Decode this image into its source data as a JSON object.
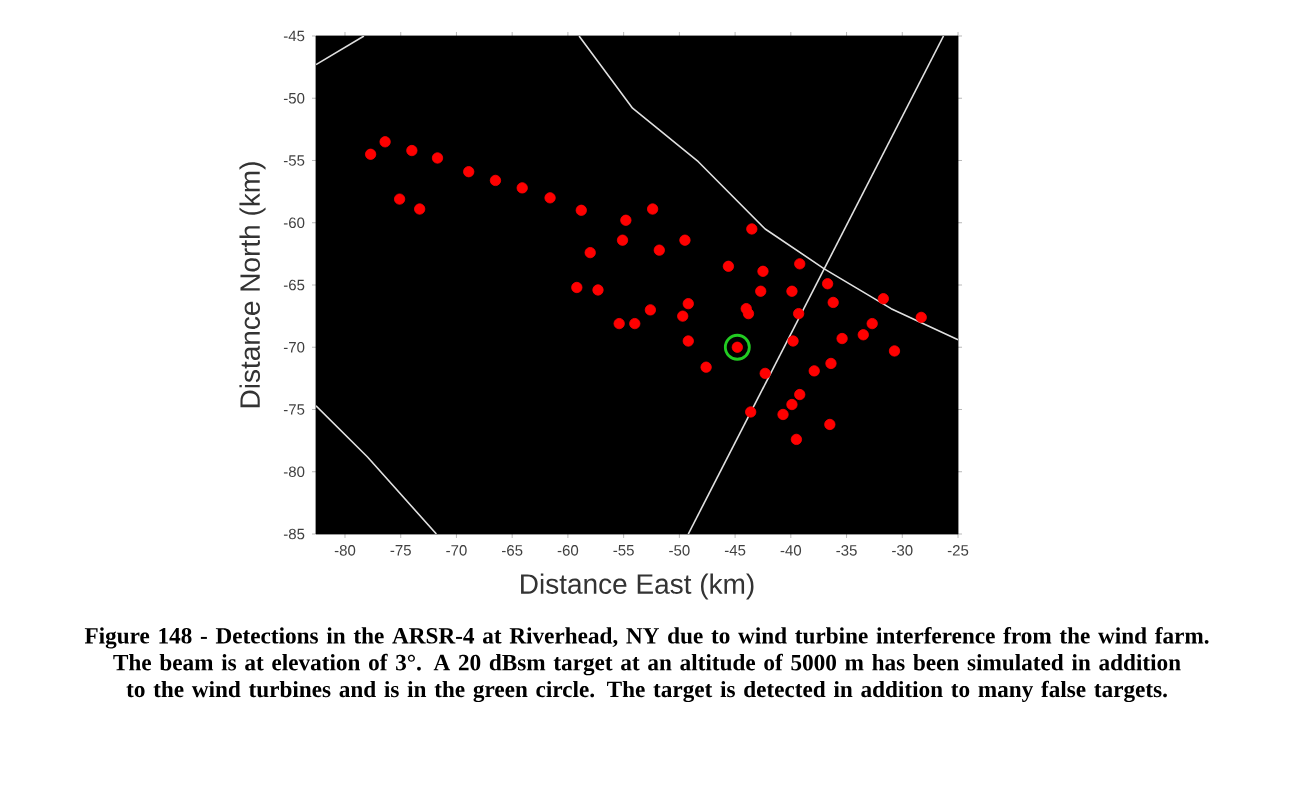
{
  "chart_data": {
    "type": "scatter",
    "xlabel": "Distance East (km)",
    "ylabel": "Distance North (km)",
    "xlim": [
      -82.6,
      -25
    ],
    "ylim": [
      -85,
      -45
    ],
    "xticks": [
      -80,
      -75,
      -70,
      -65,
      -60,
      -55,
      -50,
      -45,
      -40,
      -35,
      -30,
      -25
    ],
    "yticks": [
      -85,
      -80,
      -75,
      -70,
      -65,
      -60,
      -55,
      -50,
      -45
    ],
    "grid": false,
    "series": [
      {
        "marker": "circle",
        "color": "#ff0000",
        "x": [
          -77.7,
          -76.4,
          -74.0,
          -71.7,
          -75.1,
          -73.3,
          -68.9,
          -66.5,
          -64.1,
          -61.6,
          -58.8,
          -54.8,
          -52.4,
          -55.1,
          -58.0,
          -51.8,
          -49.5,
          -59.2,
          -57.3,
          -55.4,
          -54.0,
          -52.6,
          -49.2,
          -49.7,
          -49.2,
          -47.6,
          -45.6,
          -43.5,
          -42.5,
          -42.7,
          -44.0,
          -43.8,
          -44.8,
          -42.3,
          -43.6,
          -39.2,
          -39.9,
          -39.3,
          -39.8,
          -40.7,
          -39.9,
          -39.2,
          -39.5,
          -37.9,
          -36.4,
          -36.5,
          -36.7,
          -36.2,
          -35.4,
          -33.5,
          -32.7,
          -31.7,
          -30.7,
          -28.3
        ],
        "values": [
          -54.5,
          -53.5,
          -54.2,
          -54.8,
          -58.1,
          -58.9,
          -55.9,
          -56.6,
          -57.2,
          -58.0,
          -59.0,
          -59.8,
          -58.9,
          -61.4,
          -62.4,
          -62.2,
          -61.4,
          -65.2,
          -65.4,
          -68.1,
          -68.1,
          -67.0,
          -66.5,
          -67.5,
          -69.5,
          -71.6,
          -63.5,
          -60.5,
          -63.9,
          -65.5,
          -66.9,
          -67.3,
          -70.0,
          -72.1,
          -75.2,
          -63.3,
          -65.5,
          -67.3,
          -69.5,
          -75.4,
          -74.6,
          -73.8,
          -77.4,
          -71.9,
          -71.3,
          -76.2,
          -64.9,
          -66.4,
          -69.3,
          -69.0,
          -68.1,
          -66.1,
          -70.3,
          -67.6
        ]
      },
      {
        "type": "scatter",
        "marker": "circle",
        "color": "#22cc22",
        "x": [
          -44.8
        ],
        "values": [
          -70.0
        ]
      },
      {
        "type": "line",
        "marker": "none",
        "color": "#e0e0e0",
        "x": [
          -59.0,
          -54.2,
          -48.3,
          -42.3,
          -37.0,
          -31.0,
          -25.0
        ],
        "values": [
          -45.0,
          -50.8,
          -55.1,
          -60.5,
          -63.7,
          -66.9,
          -69.4
        ]
      },
      {
        "type": "line",
        "marker": "none",
        "color": "#e0e0e0",
        "x": [
          -26.3,
          -49.2
        ],
        "values": [
          -45.0,
          -85.0
        ]
      },
      {
        "type": "line",
        "marker": "none",
        "color": "#e0e0e0",
        "x": [
          -82.6,
          -78.3
        ],
        "values": [
          -47.3,
          -45.0
        ]
      },
      {
        "type": "line",
        "marker": "none",
        "color": "#e0e0e0",
        "x": [
          -82.6,
          -78.0,
          -71.8
        ],
        "values": [
          -74.7,
          -78.8,
          -85.0
        ]
      }
    ],
    "annotations": [
      "Figure 148 - Detections in the ARSR-4 at Riverhead, NY due to wind turbine interference from the wind farm.  The beam is at elevation of 3°.  A 20 dBsm target at an altitude of 5000 m has been simulated in addition to the wind turbines and is in the green circle.  The target is detected in addition to many false targets."
    ]
  }
}
